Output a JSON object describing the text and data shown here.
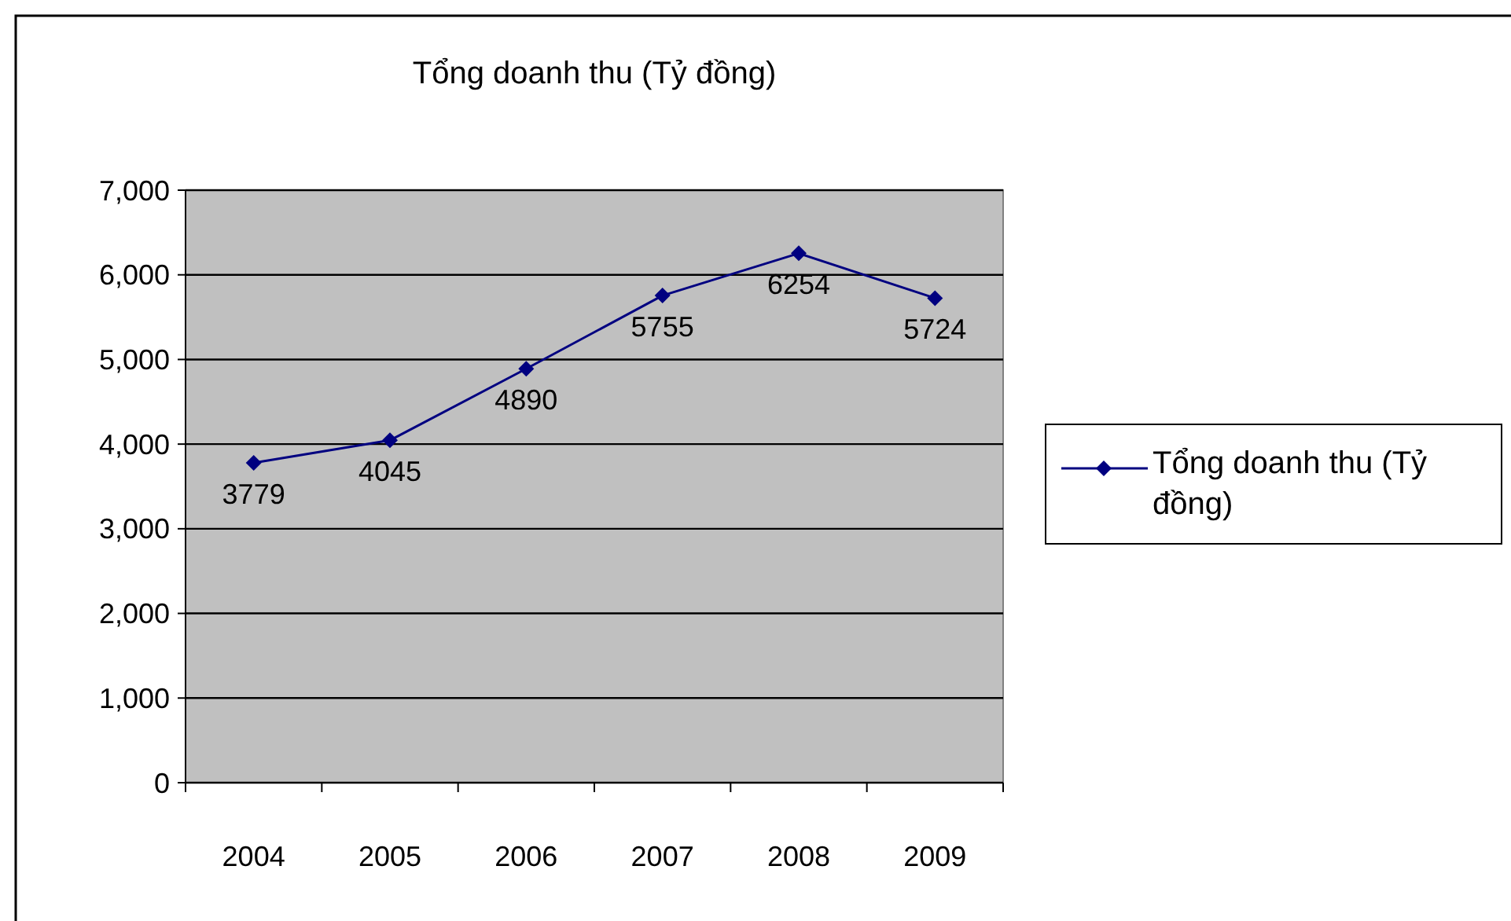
{
  "chart_data": {
    "type": "line",
    "title": "Tổng doanh thu (Tỷ đồng)",
    "categories": [
      "2004",
      "2005",
      "2006",
      "2007",
      "2008",
      "2009"
    ],
    "series": [
      {
        "name": "Tổng doanh thu (Tỷ đồng)",
        "color": "#000080",
        "values": [
          3779,
          4045,
          4890,
          5755,
          6254,
          5724
        ]
      }
    ],
    "ylim": [
      0,
      7000
    ],
    "yticks": [
      {
        "value": 0,
        "label": "0"
      },
      {
        "value": 1000,
        "label": "1,000"
      },
      {
        "value": 2000,
        "label": "2,000"
      },
      {
        "value": 3000,
        "label": "3,000"
      },
      {
        "value": 4000,
        "label": "4,000"
      },
      {
        "value": 5000,
        "label": "5,000"
      },
      {
        "value": 6000,
        "label": "6,000"
      },
      {
        "value": 7000,
        "label": "7,000"
      }
    ],
    "grid": "y",
    "legend": "right",
    "marker": "diamond",
    "line_style": "solid",
    "data_labels": true
  }
}
